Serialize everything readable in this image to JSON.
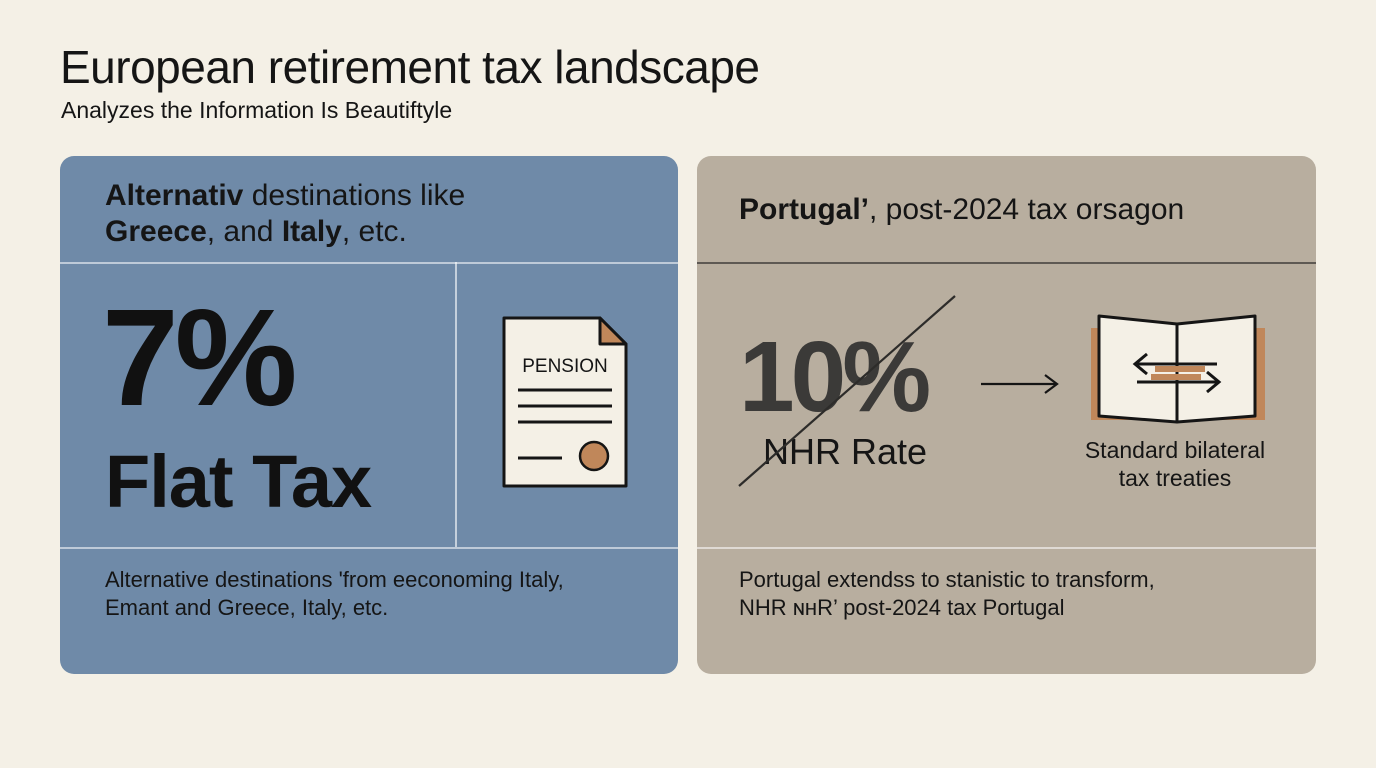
{
  "header": {
    "title": "European retirement tax landscape",
    "subtitle": "Analyzes the Information Is Beautiftyle"
  },
  "left_panel": {
    "heading_bold_1": "Alternativ",
    "heading_rest_1": " destinations like",
    "heading_bold_2": "Greece",
    "heading_mid_2": ", and ",
    "heading_bold_3": "Italy",
    "heading_rest_2": ", etc.",
    "big_value": "7%",
    "big_label": "Flat Tax",
    "document_label": "PENSION",
    "footer_line_1": "Alternative destinations 'from eeconoming Italy,",
    "footer_line_2": "Emant and Greece, Italy, etc."
  },
  "right_panel": {
    "heading_bold": "Portugal’",
    "heading_rest": ", post-2024 tax orsagon",
    "old_value": "10%",
    "old_label": "NHR Rate",
    "treaty_line_1": "Standard bilateral",
    "treaty_line_2": "tax treaties",
    "footer_line_1": "Portugal extendss to stanistic to transform,",
    "footer_line_2": "NHR ɴʜR’ post-2024 tax Portugal"
  },
  "colors": {
    "background": "#f4f0e6",
    "left_panel": "#6f8aa8",
    "right_panel": "#b8ae9f",
    "accent": "#c0875a"
  },
  "icons": {
    "left": "pension-document-icon",
    "right_arrow": "arrow-right-icon",
    "right": "treaty-book-icon"
  }
}
